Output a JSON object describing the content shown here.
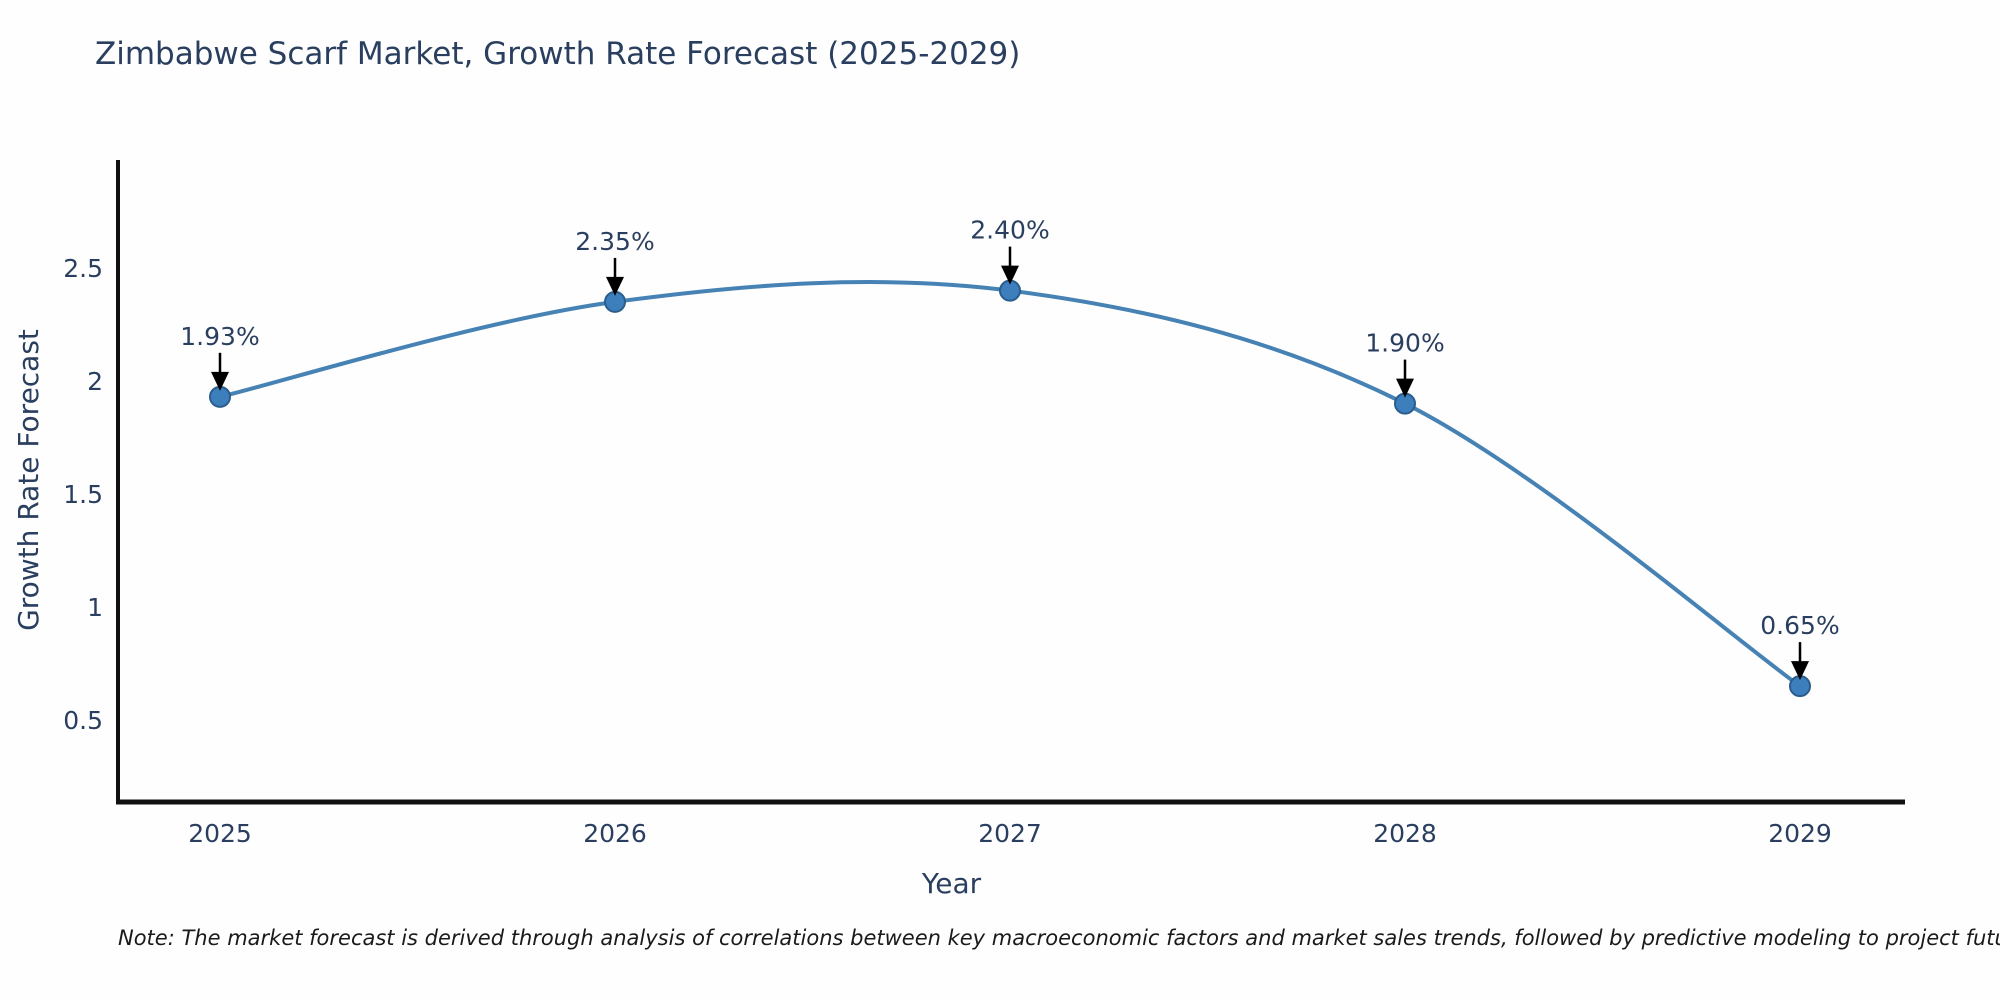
{
  "title": "Zimbabwe Scarf Market, Growth Rate Forecast (2025-2029)",
  "note": "Note: The market forecast is derived through analysis of correlations between key macroeconomic factors and market sales trends, followed by predictive modeling to project future sales",
  "chart_data": {
    "type": "line",
    "title": "Zimbabwe Scarf Market, Growth Rate Forecast (2025-2029)",
    "xlabel": "Year",
    "ylabel": "Growth Rate Forecast",
    "categories": [
      "2025",
      "2026",
      "2027",
      "2028",
      "2029"
    ],
    "series": [
      {
        "name": "Growth Rate Forecast",
        "values": [
          1.93,
          2.35,
          2.4,
          1.9,
          0.65
        ]
      }
    ],
    "point_labels": [
      "1.93%",
      "2.35%",
      "2.40%",
      "1.90%",
      "0.65%"
    ],
    "y_ticks": [
      "0.5",
      "1",
      "1.5",
      "2",
      "2.5"
    ],
    "y_tick_values": [
      0.5,
      1,
      1.5,
      2,
      2.5
    ],
    "ylim": [
      0.0,
      2.95
    ],
    "grid": false,
    "legend_position": "none",
    "line_shape": "spline",
    "marker": "circle",
    "annotation_arrows": true,
    "colors": {
      "line": "#4682b4",
      "marker_fill": "#3d7ebd",
      "marker_edge": "#2b5d8c",
      "text": "#2a3f5f",
      "axis": "#111111",
      "arrow": "#000000",
      "background": "#fefefe"
    }
  }
}
